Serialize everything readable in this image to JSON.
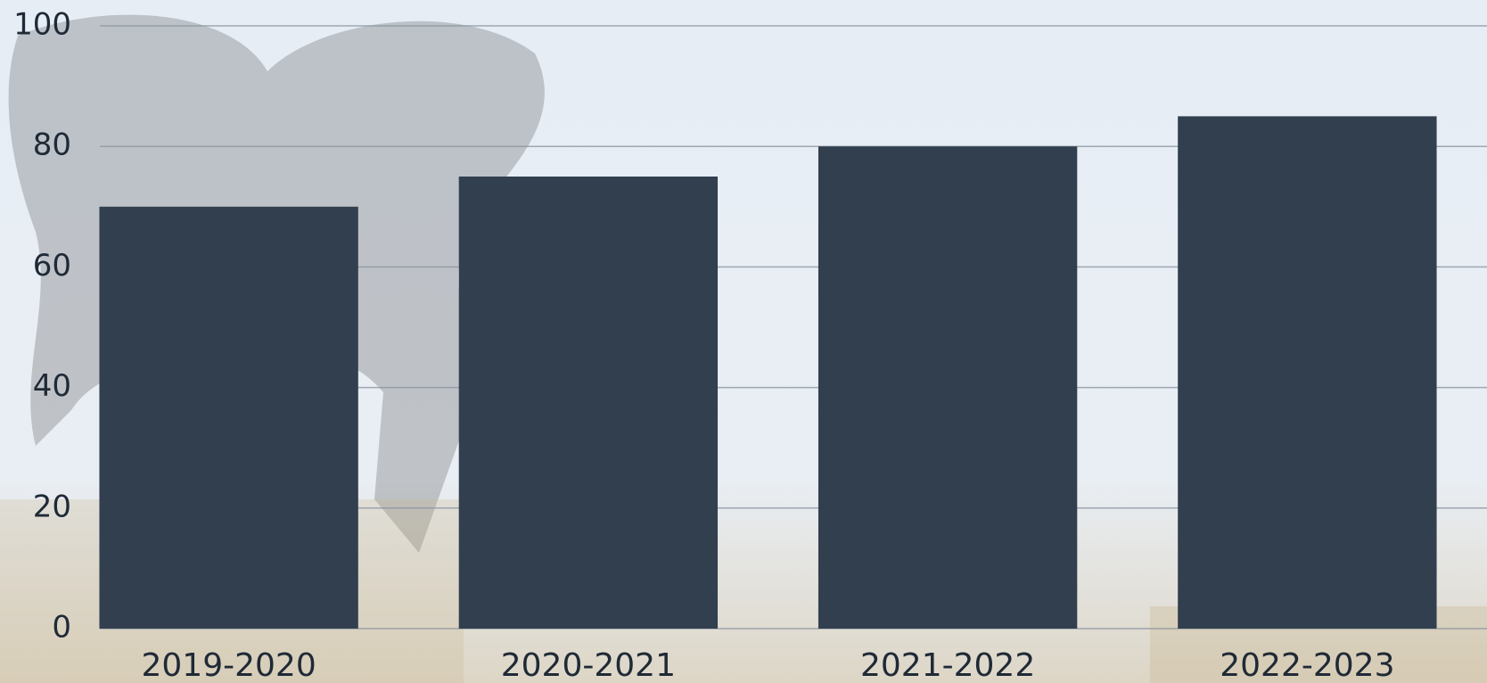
{
  "chart_data": {
    "type": "bar",
    "categories": [
      "2019-2020",
      "2020-2021",
      "2021-2022",
      "2022-2023"
    ],
    "values": [
      70,
      75,
      80,
      85
    ],
    "color": "#323f4e",
    "ylim": [
      0,
      100
    ],
    "yticks": [
      0,
      20,
      40,
      60,
      80,
      100
    ],
    "grid": true
  }
}
